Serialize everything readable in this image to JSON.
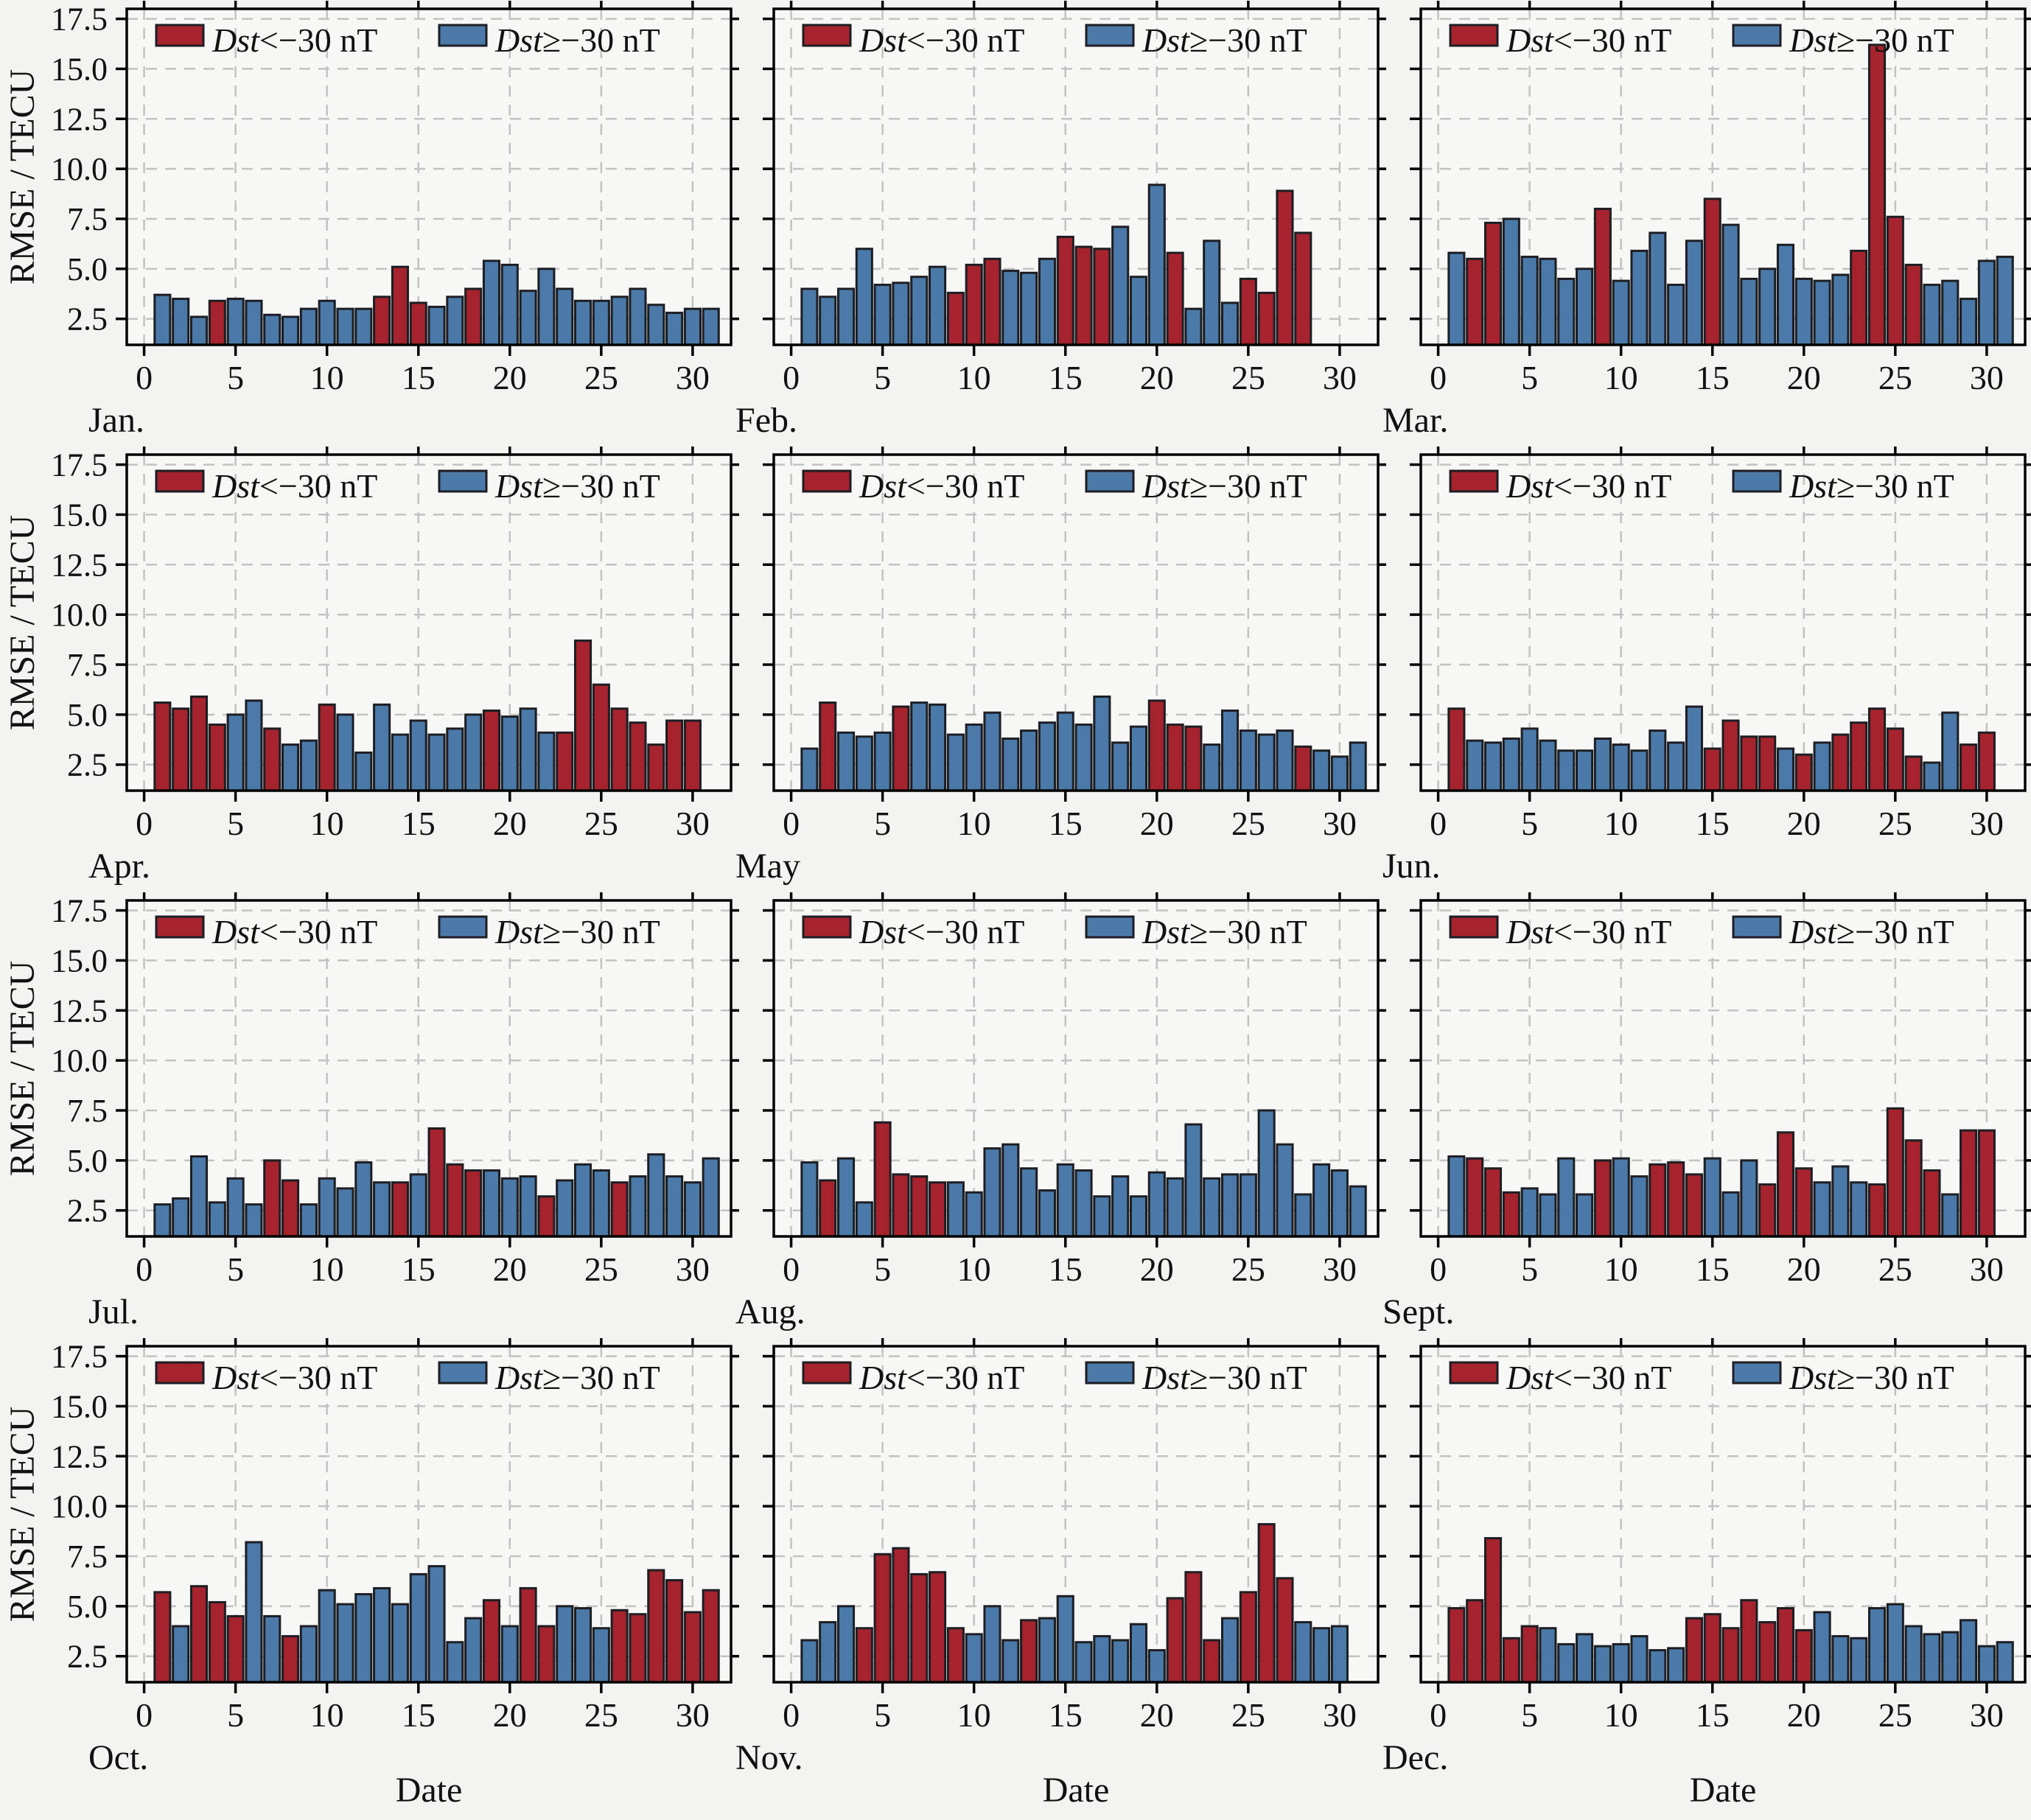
{
  "figure": {
    "ylabel": "RMSE / TECU",
    "xlabel": "Date",
    "colors": {
      "page_background": "#f3f3f2",
      "panel_background": "#f7f7f5",
      "grid": "#c2c2c2",
      "spine": "#000000",
      "bar_edge": "#1c1e23",
      "storm_red": "#a5232c",
      "quiet_blue": "#4b7aa9",
      "text": "#111111"
    },
    "legend": [
      {
        "id": "storm",
        "prefix": "Dst",
        "rest": "<−30 nT",
        "color": "#a5232c"
      },
      {
        "id": "quiet",
        "prefix": "Dst",
        "rest": "≥−30 nT",
        "color": "#4b7aa9"
      }
    ]
  },
  "chart_data": {
    "type": "bar",
    "title": "",
    "xlabel": "Date",
    "ylabel": "RMSE / TECU",
    "ylim": [
      1.2,
      18.0
    ],
    "yticks": [
      2.5,
      5.0,
      7.5,
      10.0,
      12.5,
      15.0,
      17.5
    ],
    "xticks": [
      0,
      5,
      10,
      15,
      20,
      25,
      30
    ],
    "grid": true,
    "legend_position": "upper left horizontal, inside each panel",
    "series_legend": [
      {
        "name": "Dst<−30 nT",
        "color": "#a5232c",
        "meaning": "storm day"
      },
      {
        "name": "Dst≥−30 nT",
        "color": "#4b7aa9",
        "meaning": "quiet day"
      }
    ],
    "months": [
      {
        "label": "Jan.",
        "values": [
          3.7,
          3.5,
          2.6,
          3.4,
          3.5,
          3.4,
          2.7,
          2.6,
          3.0,
          3.4,
          3.0,
          3.0,
          3.6,
          5.1,
          3.3,
          3.1,
          3.6,
          4.0,
          5.4,
          5.2,
          3.9,
          5.0,
          4.0,
          3.4,
          3.4,
          3.6,
          4.0,
          3.2,
          2.8,
          3.0,
          3.0
        ],
        "storm": [
          0,
          0,
          0,
          1,
          0,
          0,
          0,
          0,
          0,
          0,
          0,
          0,
          1,
          1,
          1,
          0,
          0,
          1,
          0,
          0,
          0,
          0,
          0,
          0,
          0,
          0,
          0,
          0,
          0,
          0,
          0
        ]
      },
      {
        "label": "Feb.",
        "values": [
          4.0,
          3.6,
          4.0,
          6.0,
          4.2,
          4.3,
          4.6,
          5.1,
          3.8,
          5.2,
          5.5,
          4.9,
          4.8,
          5.5,
          6.6,
          6.1,
          6.0,
          7.1,
          4.6,
          9.2,
          5.8,
          3.0,
          6.4,
          3.3,
          4.5,
          3.8,
          8.9,
          6.8
        ],
        "storm": [
          0,
          0,
          0,
          0,
          0,
          0,
          0,
          0,
          1,
          1,
          1,
          0,
          0,
          0,
          1,
          1,
          1,
          0,
          0,
          0,
          1,
          0,
          0,
          0,
          1,
          1,
          1,
          1
        ]
      },
      {
        "label": "Mar.",
        "values": [
          5.8,
          5.5,
          7.3,
          7.5,
          5.6,
          5.5,
          4.5,
          5.0,
          8.0,
          4.4,
          5.9,
          6.8,
          4.2,
          6.4,
          8.5,
          7.2,
          4.5,
          5.0,
          6.2,
          4.5,
          4.4,
          4.7,
          5.9,
          16.2,
          7.6,
          5.2,
          4.2,
          4.4,
          3.5,
          5.4,
          5.6
        ],
        "storm": [
          0,
          1,
          1,
          0,
          0,
          0,
          0,
          0,
          1,
          0,
          0,
          0,
          0,
          0,
          1,
          0,
          0,
          0,
          0,
          0,
          0,
          0,
          1,
          1,
          1,
          1,
          0,
          0,
          0,
          0,
          0
        ]
      },
      {
        "label": "Apr.",
        "values": [
          5.6,
          5.3,
          5.9,
          4.5,
          5.0,
          5.7,
          4.3,
          3.5,
          3.7,
          5.5,
          5.0,
          3.1,
          5.5,
          4.0,
          4.7,
          4.0,
          4.3,
          5.0,
          5.2,
          4.9,
          5.3,
          4.1,
          4.1,
          8.7,
          6.5,
          5.3,
          4.6,
          3.5,
          4.7,
          4.7
        ],
        "storm": [
          1,
          1,
          1,
          1,
          0,
          0,
          1,
          0,
          0,
          1,
          0,
          0,
          0,
          0,
          0,
          0,
          0,
          0,
          1,
          0,
          0,
          0,
          1,
          1,
          1,
          1,
          1,
          1,
          1,
          1
        ]
      },
      {
        "label": "May",
        "values": [
          3.3,
          5.6,
          4.1,
          3.9,
          4.1,
          5.4,
          5.6,
          5.5,
          4.0,
          4.5,
          5.1,
          3.8,
          4.2,
          4.6,
          5.1,
          4.5,
          5.9,
          3.6,
          4.4,
          5.7,
          4.5,
          4.4,
          3.5,
          5.2,
          4.2,
          4.0,
          4.2,
          3.4,
          3.2,
          2.9,
          3.6
        ],
        "storm": [
          0,
          1,
          0,
          0,
          0,
          1,
          0,
          0,
          0,
          0,
          0,
          0,
          0,
          0,
          0,
          0,
          0,
          0,
          0,
          1,
          1,
          1,
          0,
          0,
          0,
          0,
          0,
          1,
          0,
          0,
          0
        ]
      },
      {
        "label": "Jun.",
        "values": [
          5.3,
          3.7,
          3.6,
          3.8,
          4.3,
          3.7,
          3.2,
          3.2,
          3.8,
          3.5,
          3.2,
          4.2,
          3.6,
          5.4,
          3.3,
          4.7,
          3.9,
          3.9,
          3.3,
          3.0,
          3.6,
          4.0,
          4.6,
          5.3,
          4.3,
          2.9,
          2.6,
          5.1,
          3.5,
          4.1
        ],
        "storm": [
          1,
          0,
          0,
          0,
          0,
          0,
          0,
          0,
          0,
          0,
          0,
          0,
          0,
          0,
          1,
          1,
          1,
          1,
          0,
          1,
          0,
          1,
          1,
          1,
          1,
          1,
          0,
          0,
          1,
          1
        ]
      },
      {
        "label": "Jul.",
        "values": [
          2.8,
          3.1,
          5.2,
          2.9,
          4.1,
          2.8,
          5.0,
          4.0,
          2.8,
          4.1,
          3.6,
          4.9,
          3.9,
          3.9,
          4.3,
          6.6,
          4.8,
          4.5,
          4.5,
          4.1,
          4.2,
          3.2,
          4.0,
          4.8,
          4.5,
          3.9,
          4.2,
          5.3,
          4.2,
          3.9,
          5.1
        ],
        "storm": [
          0,
          0,
          0,
          0,
          0,
          0,
          1,
          1,
          0,
          0,
          0,
          0,
          0,
          1,
          0,
          1,
          1,
          1,
          0,
          0,
          0,
          1,
          0,
          0,
          0,
          1,
          0,
          0,
          0,
          0,
          0
        ]
      },
      {
        "label": "Aug.",
        "values": [
          4.9,
          4.0,
          5.1,
          2.9,
          6.9,
          4.3,
          4.2,
          3.9,
          3.9,
          3.4,
          5.6,
          5.8,
          4.6,
          3.5,
          4.8,
          4.5,
          3.2,
          4.2,
          3.2,
          4.4,
          4.1,
          6.8,
          4.1,
          4.3,
          4.3,
          7.5,
          5.8,
          3.3,
          4.8,
          4.5,
          3.7
        ],
        "storm": [
          0,
          1,
          0,
          0,
          1,
          1,
          1,
          1,
          0,
          0,
          0,
          0,
          0,
          0,
          0,
          0,
          0,
          0,
          0,
          0,
          0,
          0,
          0,
          0,
          0,
          0,
          0,
          0,
          0,
          0,
          0
        ]
      },
      {
        "label": "Sept.",
        "values": [
          5.2,
          5.1,
          4.6,
          3.4,
          3.6,
          3.3,
          5.1,
          3.3,
          5.0,
          5.1,
          4.2,
          4.8,
          4.9,
          4.3,
          5.1,
          3.4,
          5.0,
          3.8,
          6.4,
          4.6,
          3.9,
          4.7,
          3.9,
          3.8,
          7.6,
          6.0,
          4.5,
          3.3,
          6.5,
          6.5
        ],
        "storm": [
          0,
          1,
          1,
          1,
          0,
          0,
          0,
          0,
          1,
          0,
          0,
          1,
          1,
          1,
          0,
          0,
          0,
          1,
          1,
          1,
          0,
          0,
          0,
          1,
          1,
          1,
          1,
          0,
          1,
          1
        ]
      },
      {
        "label": "Oct.",
        "values": [
          5.7,
          4.0,
          6.0,
          5.2,
          4.5,
          8.2,
          4.5,
          3.5,
          4.0,
          5.8,
          5.1,
          5.6,
          5.9,
          5.1,
          6.6,
          7.0,
          3.2,
          4.4,
          5.3,
          4.0,
          5.9,
          4.0,
          5.0,
          4.9,
          3.9,
          4.8,
          4.6,
          6.8,
          6.3,
          4.7,
          5.8
        ],
        "storm": [
          1,
          0,
          1,
          1,
          1,
          0,
          0,
          1,
          0,
          0,
          0,
          0,
          0,
          0,
          0,
          0,
          0,
          0,
          1,
          0,
          1,
          1,
          0,
          0,
          0,
          1,
          1,
          1,
          1,
          1,
          1
        ]
      },
      {
        "label": "Nov.",
        "values": [
          3.3,
          4.2,
          5.0,
          3.9,
          7.6,
          7.9,
          6.6,
          6.7,
          3.9,
          3.6,
          5.0,
          3.3,
          4.3,
          4.4,
          5.5,
          3.2,
          3.5,
          3.3,
          4.1,
          2.8,
          5.4,
          6.7,
          3.3,
          4.4,
          5.7,
          9.1,
          6.4,
          4.2,
          3.9,
          4.0
        ],
        "storm": [
          0,
          0,
          0,
          1,
          1,
          1,
          1,
          1,
          1,
          0,
          0,
          0,
          1,
          0,
          0,
          0,
          0,
          0,
          0,
          0,
          1,
          1,
          1,
          0,
          1,
          1,
          1,
          0,
          0,
          0
        ]
      },
      {
        "label": "Dec.",
        "values": [
          4.9,
          5.3,
          8.4,
          3.4,
          4.0,
          3.9,
          3.1,
          3.6,
          3.0,
          3.1,
          3.5,
          2.8,
          2.9,
          4.4,
          4.6,
          3.9,
          5.3,
          4.2,
          4.9,
          3.8,
          4.7,
          3.5,
          3.4,
          4.9,
          5.1,
          4.0,
          3.6,
          3.7,
          4.3,
          3.0,
          3.2
        ],
        "storm": [
          1,
          1,
          1,
          1,
          1,
          0,
          0,
          0,
          0,
          0,
          0,
          0,
          0,
          1,
          1,
          1,
          1,
          1,
          1,
          1,
          0,
          0,
          0,
          0,
          0,
          0,
          0,
          0,
          0,
          0,
          0
        ]
      }
    ]
  }
}
